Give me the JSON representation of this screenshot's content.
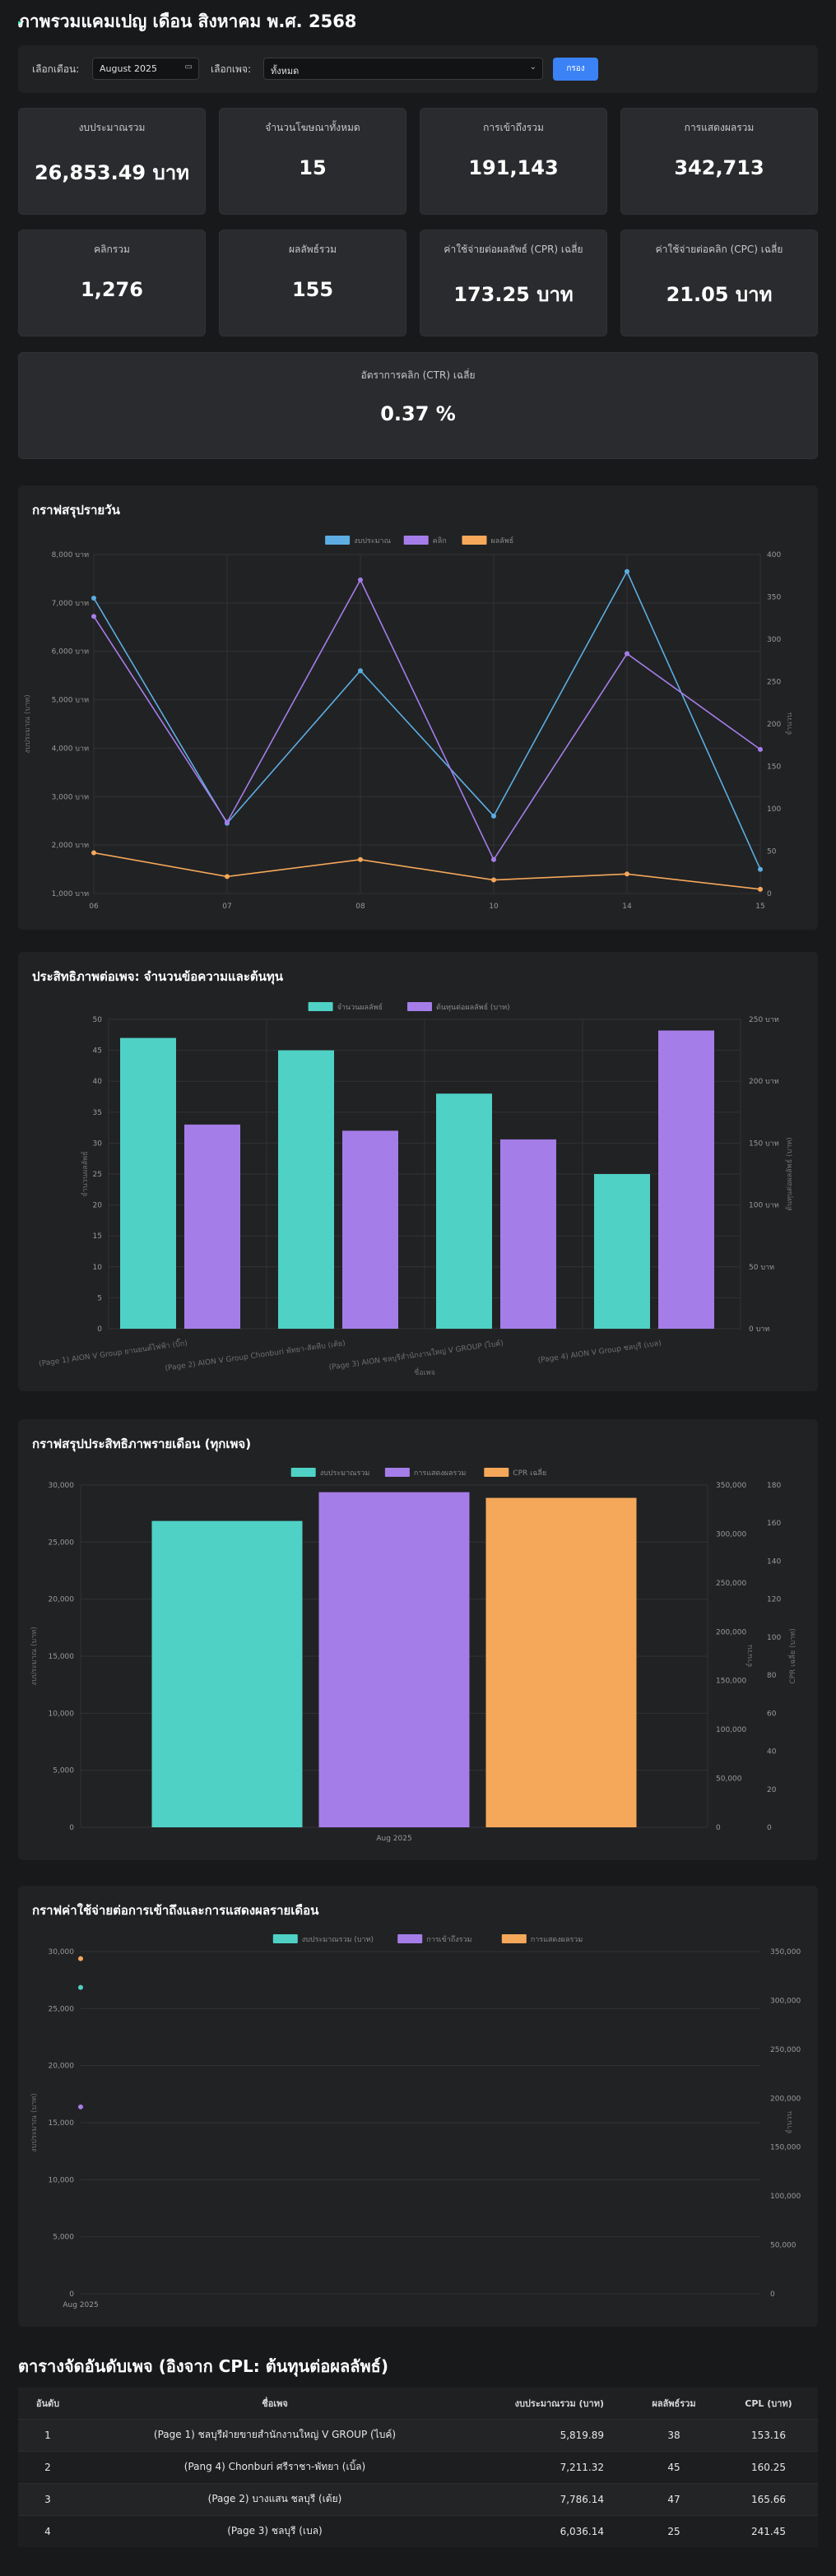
{
  "header": {
    "title": "ภาพรวมแคมเปญ เดือน สิงหาคม พ.ศ. 2568"
  },
  "filters": {
    "month_label": "เลือกเดือน:",
    "month_value": "August 2025",
    "page_label": "เลือกเพจ:",
    "page_value": "ทั้งหมด",
    "submit_label": "กรอง"
  },
  "summary": [
    {
      "label": "งบประมาณรวม",
      "value": "26,853.49 บาท"
    },
    {
      "label": "จำนวนโฆษณาทั้งหมด",
      "value": "15"
    },
    {
      "label": "การเข้าถึงรวม",
      "value": "191,143"
    },
    {
      "label": "การแสดงผลรวม",
      "value": "342,713"
    },
    {
      "label": "คลิกรวม",
      "value": "1,276"
    },
    {
      "label": "ผลลัพธ์รวม",
      "value": "155"
    },
    {
      "label": "ค่าใช้จ่ายต่อผลลัพธ์ (CPR) เฉลี่ย",
      "value": "173.25 บาท"
    },
    {
      "label": "ค่าใช้จ่ายต่อคลิก (CPC) เฉลี่ย",
      "value": "21.05 บาท"
    }
  ],
  "ctr": {
    "label": "อัตราการคลิก (CTR) เฉลี่ย",
    "value": "0.37 %"
  },
  "charts": {
    "daily": {
      "title": "กราฟสรุปรายวัน"
    },
    "per_page": {
      "title": "ประสิทธิภาพต่อเพจ: จำนวนข้อความและต้นทุน"
    },
    "monthly": {
      "title": "กราฟสรุปประสิทธิภาพรายเดือน (ทุกเพจ)"
    },
    "cost_reach": {
      "title": "กราฟค่าใช้จ่ายต่อการเข้าถึงและการแสดงผลรายเดือน"
    }
  },
  "chart_data": [
    {
      "type": "line",
      "x": [
        "06",
        "07",
        "08",
        "10",
        "14",
        "15"
      ],
      "xlabel": "",
      "ylabel": "งบประมาณ (บาท)",
      "y2label": "จำนวน",
      "ylim": [
        1000,
        8000
      ],
      "y2lim": [
        0,
        400
      ],
      "yticks": [
        "1,000 บาท",
        "2,000 บาท",
        "3,000 บาท",
        "4,000 บาท",
        "5,000 บาท",
        "6,000 บาท",
        "7,000 บาท",
        "8,000 บาท"
      ],
      "y2ticks": [
        "0",
        "50",
        "100",
        "150",
        "200",
        "250",
        "300",
        "350",
        "400"
      ],
      "legend": "top-center",
      "grid": true,
      "series": [
        {
          "name": "งบประมาณ",
          "axis": "left",
          "color": "#5dade2",
          "values": [
            7100,
            2450,
            5600,
            2600,
            7650,
            1500
          ]
        },
        {
          "name": "คลิก",
          "axis": "right",
          "color": "#a57de8",
          "values": [
            327,
            84,
            370,
            40,
            283,
            170
          ]
        },
        {
          "name": "ผลลัพธ์",
          "axis": "right",
          "color": "#f5a85a",
          "values": [
            48,
            20,
            40,
            16,
            23,
            5
          ]
        }
      ]
    },
    {
      "type": "bar",
      "categories": [
        "(Page 1) AION V Group ยานยนต์ไฟฟ้า (บิ๊ก)",
        "(Page 2) AION V Group Chonburi พัทยา-สัตหีบ (เต้ย)",
        "(Page 3) AION ชลบุรีสำนักงานใหญ่ V GROUP (ไบค์)",
        "(Page 4) AION V Group ชลบุรี (เบล)"
      ],
      "xlabel": "ชื่อเพจ",
      "ylabel": "จำนวนผลลัพธ์",
      "y2label": "ต้นทุนต่อผลลัพธ์ (บาท)",
      "ylim": [
        0,
        50
      ],
      "y2lim": [
        0,
        250
      ],
      "yticks": [
        "0",
        "5",
        "10",
        "15",
        "20",
        "25",
        "30",
        "35",
        "40",
        "45",
        "50"
      ],
      "y2ticks": [
        "0 บาท",
        "50 บาท",
        "100 บาท",
        "150 บาท",
        "200 บาท",
        "250 บาท"
      ],
      "legend": "top-center",
      "grid": true,
      "series": [
        {
          "name": "จำนวนผลลัพธ์",
          "axis": "left",
          "color": "#4fd1c5",
          "values": [
            47,
            45,
            38,
            25
          ]
        },
        {
          "name": "ต้นทุนต่อผลลัพธ์ (บาท)",
          "axis": "right",
          "color": "#a57de8",
          "values": [
            165,
            160,
            153,
            241
          ]
        }
      ]
    },
    {
      "type": "bar",
      "categories": [
        "Aug 2025"
      ],
      "ylabel": "งบประมาณ (บาท)",
      "y2label": "จำนวน",
      "y3label": "CPR เฉลี่ย (บาท)",
      "ylim": [
        0,
        30000
      ],
      "y2lim": [
        0,
        350000
      ],
      "y3lim": [
        0,
        180
      ],
      "yticks": [
        "0",
        "5,000",
        "10,000",
        "15,000",
        "20,000",
        "25,000",
        "30,000"
      ],
      "y2ticks": [
        "0",
        "50,000",
        "100,000",
        "150,000",
        "200,000",
        "250,000",
        "300,000",
        "350,000"
      ],
      "y3ticks": [
        "0",
        "20",
        "40",
        "60",
        "80",
        "100",
        "120",
        "140",
        "160",
        "180"
      ],
      "legend": "top-center",
      "grid": true,
      "series": [
        {
          "name": "งบประมาณรวม",
          "axis": "left",
          "color": "#4fd1c5",
          "values": [
            26853.49
          ]
        },
        {
          "name": "การแสดงผลรวม",
          "axis": "right",
          "color": "#a57de8",
          "values": [
            342713
          ]
        },
        {
          "name": "CPR เฉลี่ย",
          "axis": "right2",
          "color": "#f5a85a",
          "values": [
            173.25
          ]
        }
      ]
    },
    {
      "type": "scatter",
      "categories": [
        "Aug 2025"
      ],
      "ylabel": "งบประมาณ (บาท)",
      "y2label": "จำนวน",
      "ylim": [
        0,
        30000
      ],
      "y2lim": [
        0,
        350000
      ],
      "yticks": [
        "0",
        "5,000",
        "10,000",
        "15,000",
        "20,000",
        "25,000",
        "30,000"
      ],
      "y2ticks": [
        "0",
        "50,000",
        "100,000",
        "150,000",
        "200,000",
        "250,000",
        "300,000",
        "350,000"
      ],
      "legend": "top-center",
      "grid": true,
      "series": [
        {
          "name": "งบประมาณรวม (บาท)",
          "axis": "left",
          "color": "#4fd1c5",
          "values": [
            26853.49
          ]
        },
        {
          "name": "การเข้าถึงรวม",
          "axis": "right",
          "color": "#a57de8",
          "values": [
            191143
          ]
        },
        {
          "name": "การแสดงผลรวม",
          "axis": "right",
          "color": "#f5a85a",
          "values": [
            342713
          ]
        }
      ]
    }
  ],
  "ranking": {
    "title": "ตารางจัดอันดับเพจ (อิงจาก CPL: ต้นทุนต่อผลลัพธ์)",
    "columns": [
      "อันดับ",
      "ชื่อเพจ",
      "งบประมาณรวม (บาท)",
      "ผลลัพธ์รวม",
      "CPL (บาท)"
    ],
    "rows": [
      {
        "rank": "1",
        "page": "(Page 1)   ชลบุรีฝ่ายขายสำนักงานใหญ่ V GROUP (ไบค์)",
        "budget": "5,819.89",
        "results": "38",
        "cpl": "153.16"
      },
      {
        "rank": "2",
        "page": "(Pang 4)   Chonburi ศรีราชา-พัทยา (เบิ้ล)",
        "budget": "7,211.32",
        "results": "45",
        "cpl": "160.25"
      },
      {
        "rank": "3",
        "page": "(Page 2)   บางแสน ชลบุรี (เต้ย)",
        "budget": "7,786.14",
        "results": "47",
        "cpl": "165.66"
      },
      {
        "rank": "4",
        "page": "(Page 3)   ชลบุรี (เบล)",
        "budget": "6,036.14",
        "results": "25",
        "cpl": "241.45"
      }
    ]
  }
}
